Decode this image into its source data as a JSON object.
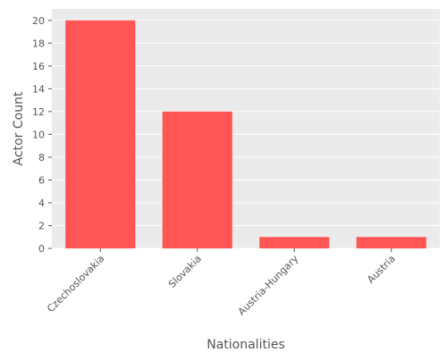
{
  "chart_data": {
    "type": "bar",
    "categories": [
      "Czechoslovakia",
      "Slovakia",
      "Austria-Hungary",
      "Austria"
    ],
    "values": [
      20,
      12,
      1,
      1
    ],
    "xlabel": "Nationalities",
    "ylabel": "Actor Count",
    "ylim": [
      0,
      21
    ],
    "yticks": [
      0,
      2,
      4,
      6,
      8,
      10,
      12,
      14,
      16,
      18,
      20
    ],
    "grid": true,
    "colors": {
      "bar": "#FF5555",
      "panel": "#EBEBEB",
      "grid": "#FFFFFF",
      "text": "#555555"
    }
  }
}
